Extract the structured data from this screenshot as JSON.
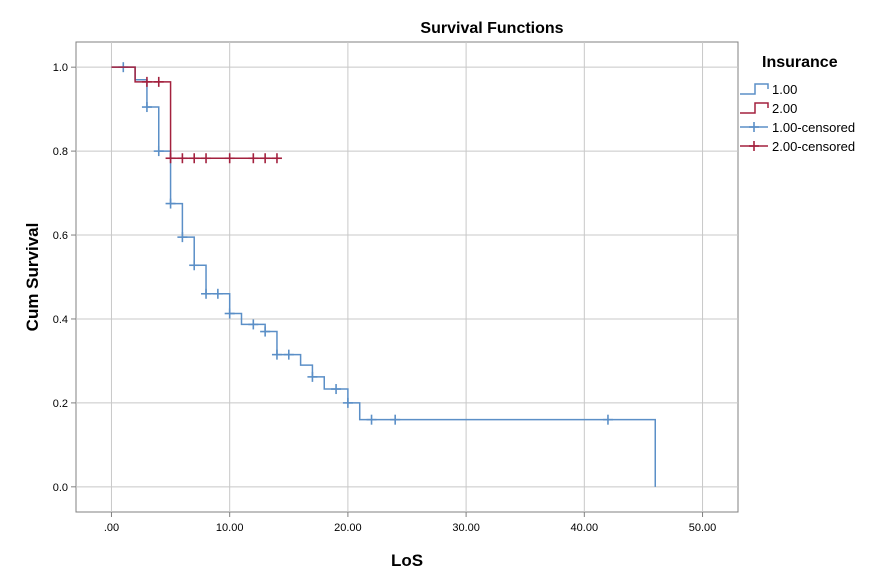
{
  "chart_data": {
    "type": "line",
    "title": "Survival Functions",
    "xlabel": "LoS",
    "ylabel": "Cum Survival",
    "xlim": [
      -3,
      53
    ],
    "ylim": [
      -0.06,
      1.06
    ],
    "x_ticks": [
      0,
      10,
      20,
      30,
      40,
      50
    ],
    "x_tick_labels": [
      ".00",
      "10.00",
      "20.00",
      "30.00",
      "40.00",
      "50.00"
    ],
    "y_ticks": [
      0,
      0.2,
      0.4,
      0.6,
      0.8,
      1.0
    ],
    "y_tick_labels": [
      "0.0",
      "0.2",
      "0.4",
      "0.6",
      "0.8",
      "1.0"
    ],
    "grid": true,
    "legend_title": "Insurance",
    "legend_position": "right",
    "legend": [
      {
        "label": "1.00",
        "kind": "step",
        "color": "#5b8fc7"
      },
      {
        "label": "2.00",
        "kind": "step",
        "color": "#a3213e"
      },
      {
        "label": "1.00-censored",
        "kind": "plus",
        "color": "#5b8fc7"
      },
      {
        "label": "2.00-censored",
        "kind": "plus",
        "color": "#a3213e"
      }
    ],
    "series": [
      {
        "name": "1.00",
        "color": "#5b8fc7",
        "steps": [
          [
            0,
            1.0
          ],
          [
            2,
            0.97
          ],
          [
            3,
            0.905
          ],
          [
            4,
            0.8
          ],
          [
            5,
            0.675
          ],
          [
            6,
            0.595
          ],
          [
            7,
            0.528
          ],
          [
            8,
            0.46
          ],
          [
            10,
            0.413
          ],
          [
            11,
            0.387
          ],
          [
            13,
            0.37
          ],
          [
            14,
            0.315
          ],
          [
            16,
            0.29
          ],
          [
            17,
            0.262
          ],
          [
            18,
            0.233
          ],
          [
            20,
            0.2
          ],
          [
            21,
            0.16
          ],
          [
            46,
            0.0
          ]
        ],
        "censored": [
          [
            1,
            1.0
          ],
          [
            3,
            0.905
          ],
          [
            4,
            0.8
          ],
          [
            5,
            0.675
          ],
          [
            6,
            0.595
          ],
          [
            7,
            0.528
          ],
          [
            8,
            0.46
          ],
          [
            9,
            0.46
          ],
          [
            10,
            0.413
          ],
          [
            12,
            0.387
          ],
          [
            13,
            0.37
          ],
          [
            14,
            0.315
          ],
          [
            15,
            0.315
          ],
          [
            17,
            0.262
          ],
          [
            19,
            0.233
          ],
          [
            20,
            0.2
          ],
          [
            22,
            0.16
          ],
          [
            24,
            0.16
          ],
          [
            42,
            0.16
          ]
        ]
      },
      {
        "name": "2.00",
        "color": "#a3213e",
        "steps": [
          [
            0,
            1.0
          ],
          [
            2,
            0.965
          ],
          [
            5,
            0.783
          ],
          [
            14,
            0.783
          ]
        ],
        "censored": [
          [
            3,
            0.965
          ],
          [
            4,
            0.965
          ],
          [
            5,
            0.783
          ],
          [
            6,
            0.783
          ],
          [
            7,
            0.783
          ],
          [
            8,
            0.783
          ],
          [
            10,
            0.783
          ],
          [
            12,
            0.783
          ],
          [
            13,
            0.783
          ],
          [
            14,
            0.783
          ]
        ]
      }
    ]
  }
}
